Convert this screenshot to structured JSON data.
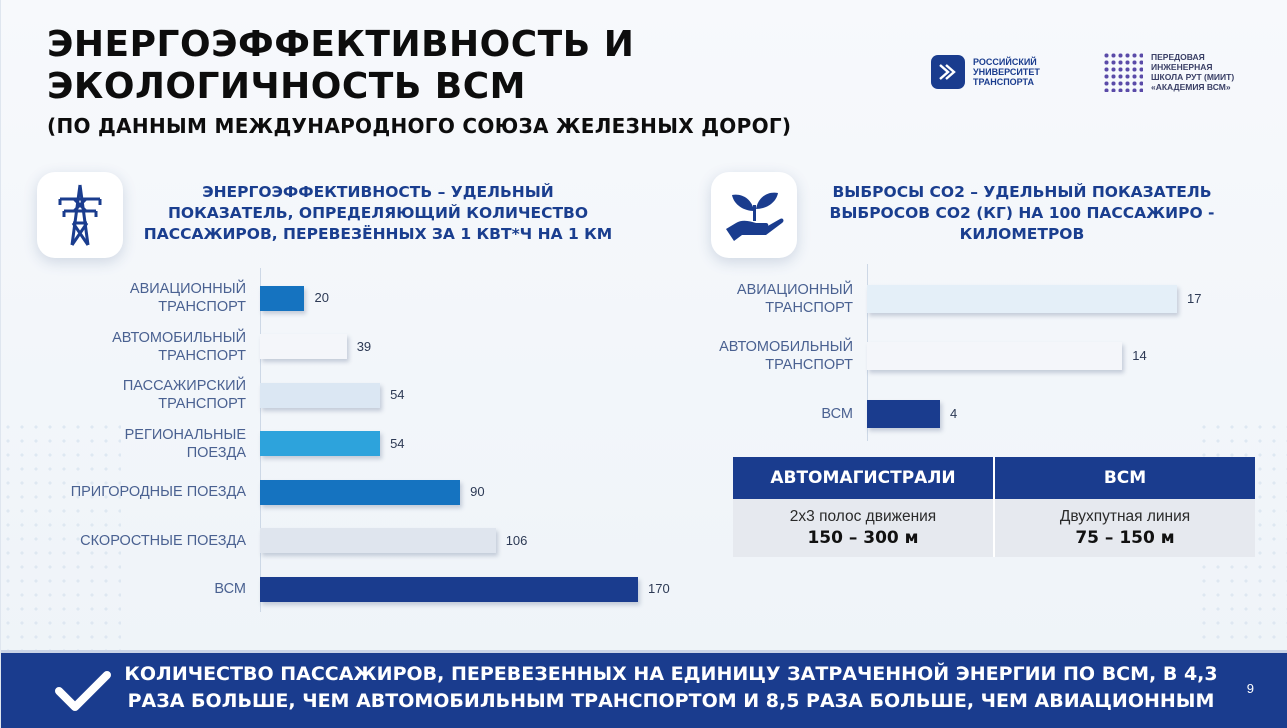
{
  "title": {
    "line1": "ЭНЕРГОЭФФЕКТИВНОСТЬ И",
    "line2": "ЭКОЛОГИЧНОСТЬ ВСМ",
    "subtitle": "(ПО ДАННЫМ МЕЖДУНАРОДНОГО СОЮЗА ЖЕЛЕЗНЫХ ДОРОГ)"
  },
  "logos": {
    "rut": [
      "РОССИЙСКИЙ",
      "УНИВЕРСИТЕТ",
      "ТРАНСПОРТА"
    ],
    "school": [
      "ПЕРЕДОВАЯ",
      "ИНЖЕНЕРНАЯ",
      "ШКОЛА РУТ (МИИТ)",
      "«АКАДЕМИЯ ВСМ»"
    ]
  },
  "energy": {
    "icon": "power-tower-icon",
    "heading": [
      "ЭНЕРГОЭФФЕКТИВНОСТЬ – УДЕЛЬНЫЙ",
      "ПОКАЗАТЕЛЬ, ОПРЕДЕЛЯЮЩИЙ КОЛИЧЕСТВО",
      "ПАССАЖИРОВ, ПЕРЕВЕЗЁННЫХ ЗА 1 КВТ*Ч НА 1 КМ"
    ]
  },
  "emissions": {
    "icon": "plant-in-hand-icon",
    "heading": [
      "ВЫБРОСЫ CO2 – УДЕЛЬНЫЙ ПОКАЗАТЕЛЬ",
      "ВЫБРОСОВ CO2 (КГ) НА 100 ПАССАЖИРО -",
      "КИЛОМЕТРОВ"
    ]
  },
  "chart_data": [
    {
      "type": "bar",
      "orientation": "horizontal",
      "categories": [
        [
          "АВИАЦИОННЫЙ",
          "ТРАНСПОРТ"
        ],
        [
          "АВТОМОБИЛЬНЫЙ",
          "ТРАНСПОРТ"
        ],
        [
          "ПАССАЖИРСКИЙ",
          "ТРАНСПОРТ"
        ],
        [
          "РЕГИОНАЛЬНЫЕ",
          "ПОЕЗДА"
        ],
        [
          "ПРИГОРОДНЫЕ ПОЕЗДА"
        ],
        [
          "СКОРОСТНЫЕ ПОЕЗДА"
        ],
        [
          "ВСМ"
        ]
      ],
      "values": [
        20,
        39,
        54,
        54,
        90,
        106,
        170
      ],
      "colors": [
        "#1573c0",
        "#f4f6fa",
        "#dbe7f3",
        "#2da3dc",
        "#1573c0",
        "#dfe5ee",
        "#1a3c8e"
      ],
      "xlim": [
        0,
        170
      ],
      "grid": false,
      "legend": "none"
    },
    {
      "type": "bar",
      "orientation": "horizontal",
      "categories": [
        [
          "АВИАЦИОННЫЙ",
          "ТРАНСПОРТ"
        ],
        [
          "АВТОМОБИЛЬНЫЙ",
          "ТРАНСПОРТ"
        ],
        [
          "ВСМ"
        ]
      ],
      "values": [
        17,
        14,
        4
      ],
      "colors": [
        "#e4eff8",
        "#f4f6fa",
        "#1a3c8e"
      ],
      "xlim": [
        0,
        17
      ],
      "grid": false,
      "legend": "none"
    }
  ],
  "table": {
    "headers": [
      "АВТОМАГИСТРАЛИ",
      "ВСМ"
    ],
    "rows": [
      {
        "line1": "2х3 полос движения",
        "line2": "150 – 300 м"
      },
      {
        "line1": "Двухпутная линия",
        "line2": "75 – 150 м"
      }
    ]
  },
  "footer": {
    "icon": "checkmark-icon",
    "line1": "КОЛИЧЕСТВО ПАССАЖИРОВ, ПЕРЕВЕЗЕННЫХ НА ЕДИНИЦУ ЗАТРАЧЕННОЙ ЭНЕРГИИ ПО ВСМ, В 4,3",
    "line2": "РАЗА БОЛЬШЕ, ЧЕМ АВТОМОБИЛЬНЫМ ТРАНСПОРТОМ И 8,5 РАЗА БОЛЬШЕ, ЧЕМ АВИАЦИОННЫМ",
    "page": "9"
  }
}
